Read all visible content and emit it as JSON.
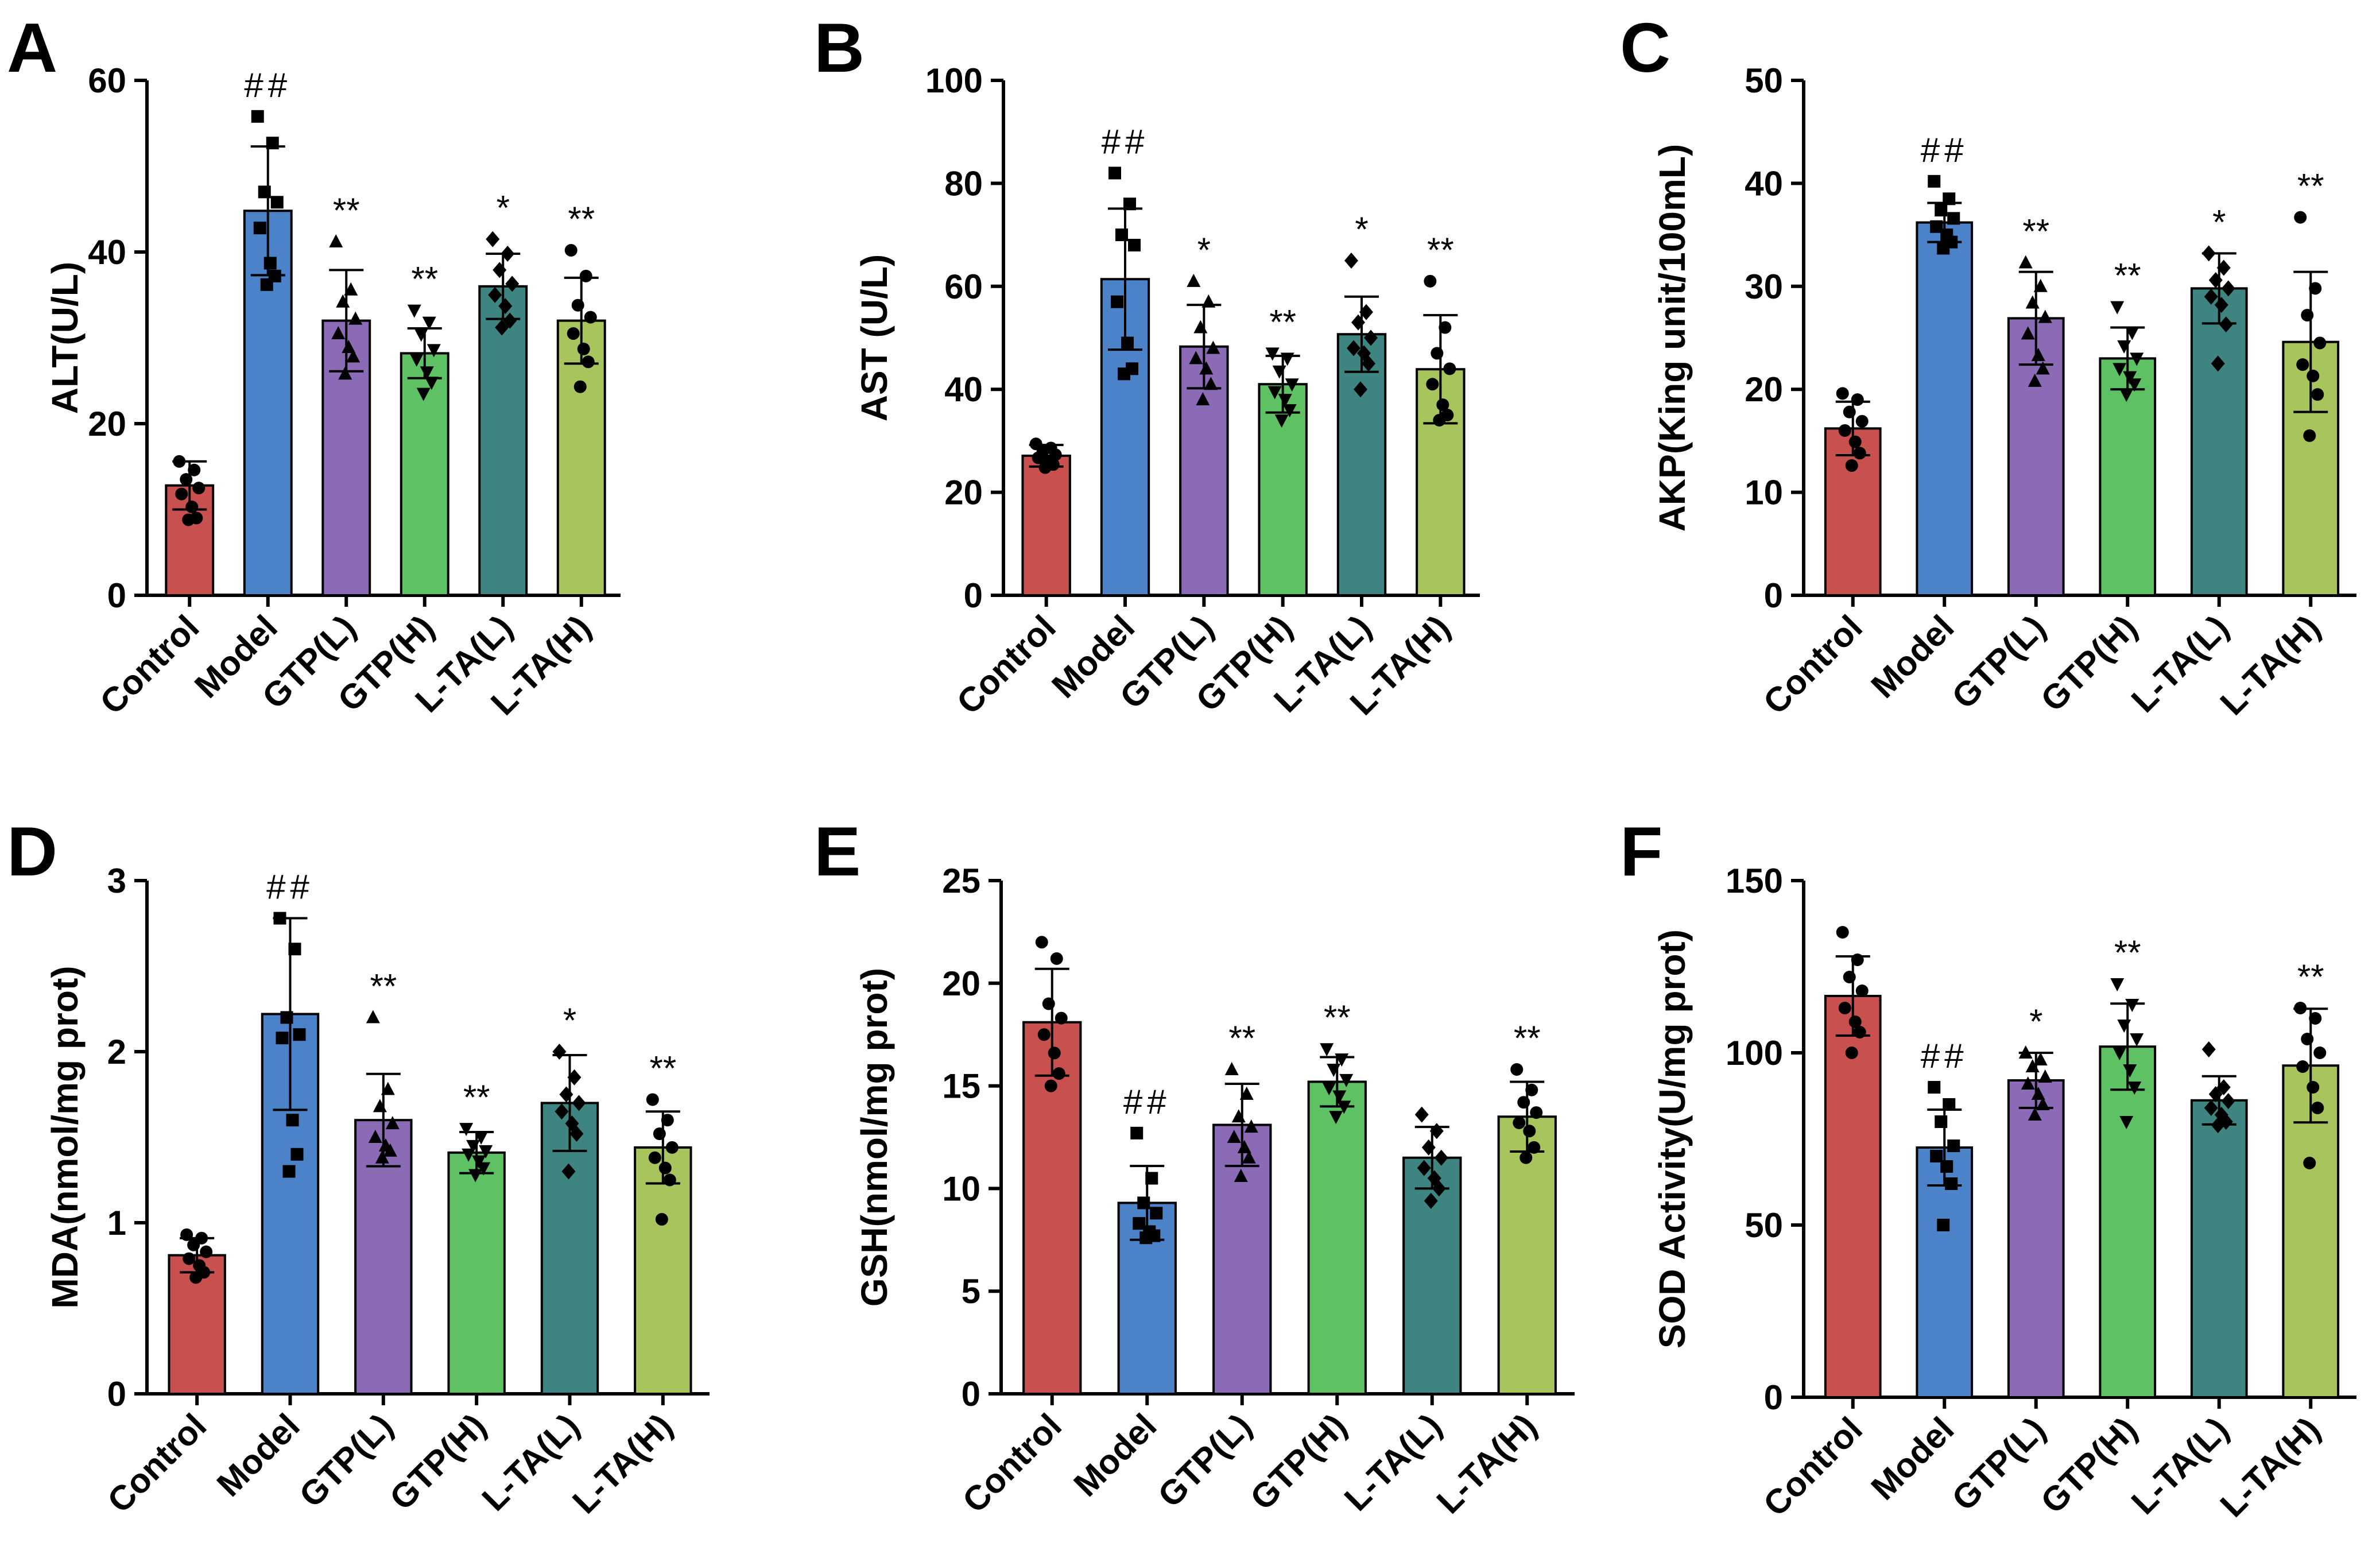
{
  "figure": {
    "colors": {
      "Control": "#c8504f",
      "Model": "#4b82c8",
      "GTP(L)": "#8b6bb5",
      "GTP(H)": "#5ec264",
      "L-TA(L)": "#3e8480",
      "L-TA(H)": "#a8c55d"
    },
    "marker_shapes": [
      "circle",
      "square",
      "triangle-up",
      "triangle-down",
      "diamond",
      "circle"
    ]
  },
  "chart_data": [
    {
      "panel": "A",
      "type": "bar",
      "ylabel": "ALT(U/L)",
      "ylim": [
        0,
        60
      ],
      "yticks": [
        0,
        20,
        40,
        60
      ],
      "categories": [
        "Control",
        "Model",
        "GTP(L)",
        "GTP(H)",
        "L-TA(L)",
        "L-TA(H)"
      ],
      "values": [
        12.8,
        44.8,
        32.0,
        28.2,
        36.0,
        32.0
      ],
      "errors": [
        2.8,
        7.5,
        5.9,
        2.9,
        3.8,
        5.0
      ],
      "significance": [
        "",
        "##",
        "**",
        "**",
        "*",
        "**"
      ],
      "points": [
        [
          15.6,
          14.6,
          13.5,
          12.5,
          11.8,
          10.3,
          9.0,
          8.8
        ],
        [
          55.8,
          52.7,
          47.0,
          45.8,
          42.8,
          38.7,
          37.2,
          36.2
        ],
        [
          41.2,
          35.6,
          34.2,
          32.2,
          30.5,
          28.9,
          27.8,
          25.8
        ],
        [
          33.2,
          31.8,
          30.4,
          28.6,
          27.5,
          26.0,
          24.8,
          23.5
        ],
        [
          41.5,
          39.8,
          37.9,
          36.3,
          35.0,
          33.7,
          32.0,
          31.2
        ],
        [
          40.2,
          37.2,
          33.8,
          32.4,
          30.5,
          28.7,
          27.2,
          24.3
        ]
      ]
    },
    {
      "panel": "B",
      "type": "bar",
      "ylabel": "AST (U/L)",
      "ylim": [
        0,
        100
      ],
      "yticks": [
        0,
        20,
        40,
        60,
        80,
        100
      ],
      "categories": [
        "Control",
        "Model",
        "GTP(L)",
        "GTP(H)",
        "L-TA(L)",
        "L-TA(H)"
      ],
      "values": [
        27.1,
        61.4,
        48.3,
        41.0,
        50.7,
        43.9
      ],
      "errors": [
        2.1,
        13.7,
        8.1,
        5.5,
        7.3,
        10.5
      ],
      "significance": [
        "",
        "##",
        "*",
        "**",
        "*",
        "**"
      ],
      "points": [
        [
          29.4,
          28.6,
          28.0,
          27.3,
          26.7,
          26.0,
          25.4,
          24.8
        ],
        [
          82.0,
          76.0,
          70.0,
          68.0,
          57.0,
          49.0,
          44.0,
          43.0
        ],
        [
          61.0,
          57.0,
          52.0,
          48.0,
          46.0,
          44.0,
          41.0,
          38.0
        ],
        [
          47.0,
          46.0,
          43.5,
          41.0,
          39.5,
          38.0,
          36.0,
          34.0
        ],
        [
          65.0,
          55.0,
          53.0,
          50.0,
          48.0,
          47.0,
          45.0,
          40.0
        ],
        [
          61.0,
          52.0,
          47.0,
          44.0,
          41.0,
          37.0,
          35.0,
          34.0
        ]
      ]
    },
    {
      "panel": "C",
      "type": "bar",
      "ylabel": "AKP(King unit/100mL)",
      "ylim": [
        0,
        50
      ],
      "yticks": [
        0,
        10,
        20,
        30,
        40,
        50
      ],
      "categories": [
        "Control",
        "Model",
        "GTP(L)",
        "GTP(H)",
        "L-TA(L)",
        "L-TA(H)"
      ],
      "values": [
        16.2,
        36.2,
        26.9,
        23.0,
        29.8,
        24.6
      ],
      "errors": [
        2.6,
        1.9,
        4.5,
        3.0,
        3.4,
        6.8
      ],
      "significance": [
        "",
        "##",
        "**",
        "**",
        "*",
        "**"
      ],
      "points": [
        [
          19.6,
          19.0,
          17.8,
          16.9,
          16.0,
          14.9,
          13.8,
          12.6
        ],
        [
          40.2,
          38.5,
          37.4,
          36.6,
          35.8,
          35.0,
          34.3,
          33.7
        ],
        [
          32.3,
          30.0,
          28.4,
          27.0,
          25.4,
          23.3,
          22.0,
          20.8
        ],
        [
          28.0,
          25.5,
          24.2,
          23.0,
          22.0,
          21.2,
          20.5,
          19.5
        ],
        [
          33.2,
          31.8,
          30.6,
          29.8,
          29.0,
          28.2,
          26.3,
          22.5
        ],
        [
          36.7,
          29.8,
          27.2,
          24.5,
          22.4,
          21.3,
          19.5,
          15.5
        ]
      ]
    },
    {
      "panel": "D",
      "type": "bar",
      "ylabel": "MDA(nmol/mg prot)",
      "ylim": [
        0,
        3
      ],
      "yticks": [
        0,
        1,
        2,
        3
      ],
      "categories": [
        "Control",
        "Model",
        "GTP(L)",
        "GTP(H)",
        "L-TA(L)",
        "L-TA(H)"
      ],
      "values": [
        0.81,
        2.22,
        1.6,
        1.41,
        1.7,
        1.44
      ],
      "errors": [
        0.1,
        0.56,
        0.27,
        0.12,
        0.28,
        0.21
      ],
      "significance": [
        "",
        "##",
        "**",
        "**",
        "*",
        "**"
      ],
      "points": [
        [
          0.93,
          0.91,
          0.87,
          0.83,
          0.79,
          0.75,
          0.71,
          0.68
        ],
        [
          2.78,
          2.6,
          2.2,
          2.1,
          2.08,
          1.6,
          1.4,
          1.3
        ],
        [
          2.2,
          1.78,
          1.68,
          1.58,
          1.5,
          1.45,
          1.42,
          1.38
        ],
        [
          1.55,
          1.5,
          1.45,
          1.42,
          1.4,
          1.36,
          1.32,
          1.28
        ],
        [
          2.0,
          1.85,
          1.75,
          1.7,
          1.65,
          1.58,
          1.52,
          1.3
        ],
        [
          1.72,
          1.6,
          1.52,
          1.44,
          1.38,
          1.32,
          1.25,
          1.02
        ]
      ]
    },
    {
      "panel": "E",
      "type": "bar",
      "ylabel": "GSH(nmol/mg prot)",
      "ylim": [
        0,
        25
      ],
      "yticks": [
        0,
        5,
        10,
        15,
        20,
        25
      ],
      "categories": [
        "Control",
        "Model",
        "GTP(L)",
        "GTP(H)",
        "L-TA(L)",
        "L-TA(H)"
      ],
      "values": [
        18.1,
        9.3,
        13.1,
        15.2,
        11.5,
        13.5
      ],
      "errors": [
        2.6,
        1.8,
        2.0,
        1.2,
        1.5,
        1.7
      ],
      "significance": [
        "",
        "##",
        "**",
        "**",
        "",
        "**"
      ],
      "points": [
        [
          22.0,
          21.2,
          19.0,
          18.3,
          17.5,
          16.6,
          15.6,
          15.0
        ],
        [
          12.7,
          10.5,
          9.3,
          8.8,
          8.3,
          7.9,
          7.7,
          7.6
        ],
        [
          15.8,
          14.6,
          13.5,
          13.0,
          12.5,
          12.0,
          11.5,
          10.6
        ],
        [
          16.8,
          16.3,
          15.8,
          15.3,
          14.9,
          14.5,
          14.0,
          13.5
        ],
        [
          13.6,
          12.8,
          12.0,
          11.5,
          11.0,
          10.5,
          10.0,
          9.4
        ],
        [
          15.8,
          14.8,
          14.2,
          13.7,
          13.2,
          12.8,
          12.0,
          11.5
        ]
      ]
    },
    {
      "panel": "F",
      "type": "bar",
      "ylabel": "SOD Activity(U/mg prot)",
      "ylim": [
        0,
        150
      ],
      "yticks": [
        0,
        50,
        100,
        150
      ],
      "categories": [
        "Control",
        "Model",
        "GTP(L)",
        "GTP(H)",
        "L-TA(L)",
        "L-TA(H)"
      ],
      "values": [
        116.5,
        72.5,
        92.0,
        101.8,
        86.2,
        96.3
      ],
      "errors": [
        11.5,
        11.0,
        8.0,
        12.5,
        7.0,
        16.5
      ],
      "significance": [
        "",
        "##",
        "*",
        "**",
        "",
        "**"
      ],
      "points": [
        [
          135.0,
          127.0,
          122.0,
          118.0,
          113.0,
          109.0,
          106.0,
          100.0
        ],
        [
          90.0,
          85.0,
          80.0,
          73.0,
          70.0,
          67.0,
          62.0,
          50.0
        ],
        [
          100.0,
          98.0,
          96.0,
          93.0,
          91.0,
          88.0,
          85.0,
          82.0
        ],
        [
          120.0,
          114.0,
          108.0,
          104.0,
          100.0,
          95.0,
          90.0,
          80.0
        ],
        [
          101.0,
          90.0,
          88.0,
          86.0,
          84.0,
          82.0,
          80.0,
          79.0
        ],
        [
          113.0,
          110.0,
          104.0,
          100.0,
          96.0,
          90.0,
          84.0,
          68.0
        ]
      ]
    }
  ]
}
